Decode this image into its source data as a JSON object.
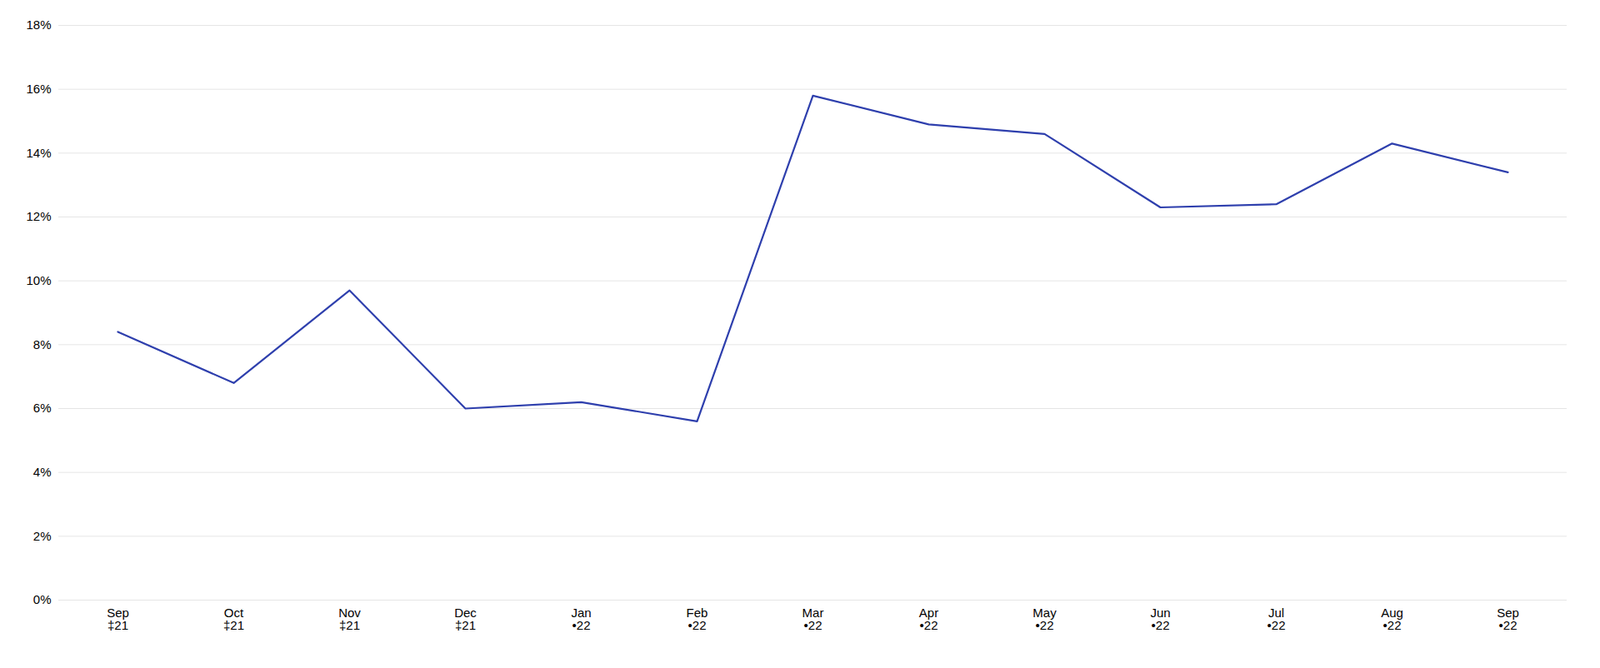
{
  "chart_data": {
    "type": "line",
    "categories": [
      "Sep\n‡21",
      "Oct\n‡21",
      "Nov\n‡21",
      "Dec\n‡21",
      "Jan\n•22",
      "Feb\n•22",
      "Mar\n•22",
      "Apr\n•22",
      "May\n•22",
      "Jun\n•22",
      "Jul\n•22",
      "Aug\n•22",
      "Sep\n•22"
    ],
    "values": [
      8.4,
      6.8,
      9.7,
      6.0,
      6.2,
      5.6,
      15.8,
      14.9,
      14.6,
      12.3,
      12.4,
      14.3,
      13.4
    ],
    "color": "#2E3FAD",
    "ylim": [
      0,
      18
    ],
    "yticks": [
      {
        "value": 0,
        "label": "0%"
      },
      {
        "value": 2,
        "label": "2%"
      },
      {
        "value": 4,
        "label": "4%"
      },
      {
        "value": 6,
        "label": "6%"
      },
      {
        "value": 8,
        "label": "8%"
      },
      {
        "value": 10,
        "label": "10%"
      },
      {
        "value": 12,
        "label": "12%"
      },
      {
        "value": 14,
        "label": "14%"
      },
      {
        "value": 16,
        "label": "16%"
      },
      {
        "value": 18,
        "label": "18%"
      }
    ],
    "grid": true
  }
}
